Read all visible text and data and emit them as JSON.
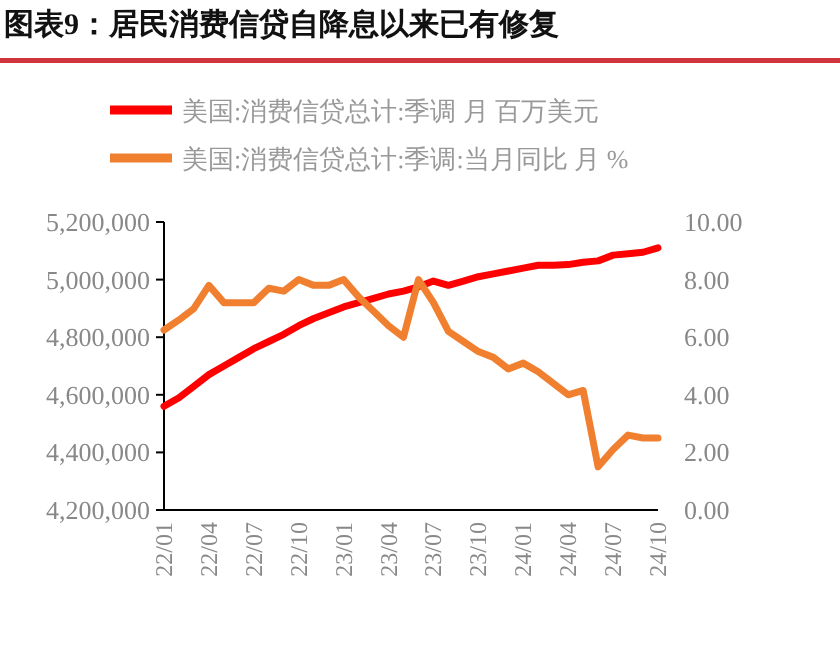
{
  "chart_data": {
    "type": "line",
    "title": "图表9：居民消费信贷自降息以来已有修复",
    "categories": [
      "22/01",
      null,
      null,
      "22/04",
      null,
      null,
      "22/07",
      null,
      null,
      "22/10",
      null,
      null,
      "23/01",
      null,
      null,
      "23/04",
      null,
      null,
      "23/07",
      null,
      null,
      "23/10",
      null,
      null,
      "24/01",
      null,
      null,
      "24/04",
      null,
      null,
      "24/07",
      null,
      null,
      "24/10"
    ],
    "series": [
      {
        "name": "美国:消费信贷总计:季调 月 百万美元",
        "color": "#ff0000",
        "values": [
          4560000,
          4590000,
          4630000,
          4670000,
          4700000,
          4730000,
          4760000,
          4785000,
          4810000,
          4840000,
          4865000,
          4885000,
          4905000,
          4920000,
          4935000,
          4950000,
          4960000,
          4975000,
          4995000,
          4980000,
          4995000,
          5010000,
          5020000,
          5030000,
          5040000,
          5050000,
          5050000,
          5052000,
          5060000,
          5065000,
          5085000,
          5090000,
          5095000,
          5110000
        ]
      },
      {
        "name": "美国:消费信贷总计:季调:当月同比 月 %",
        "color": "#f08030",
        "axis": "y2",
        "values": [
          6.25,
          6.6,
          7.0,
          7.8,
          7.2,
          7.2,
          7.2,
          7.7,
          7.6,
          8.0,
          7.8,
          7.8,
          8.0,
          7.4,
          6.9,
          6.4,
          6.0,
          8.0,
          7.2,
          6.2,
          5.85,
          5.5,
          5.3,
          4.9,
          5.1,
          4.8,
          4.4,
          4.0,
          4.15,
          1.5,
          2.1,
          2.6,
          2.5,
          2.5
        ]
      }
    ],
    "ylim": [
      4200000,
      5200000
    ],
    "yticks": [
      {
        "value": 4200000,
        "label": "4,200,000"
      },
      {
        "value": 4400000,
        "label": "4,400,000"
      },
      {
        "value": 4600000,
        "label": "4,600,000"
      },
      {
        "value": 4800000,
        "label": "4,800,000"
      },
      {
        "value": 5000000,
        "label": "5,000,000"
      },
      {
        "value": 5200000,
        "label": "5,200,000"
      }
    ],
    "y2lim": [
      0,
      10
    ],
    "y2ticks": [
      {
        "value": 0,
        "label": "0.00"
      },
      {
        "value": 2,
        "label": "2.00"
      },
      {
        "value": 4,
        "label": "4.00"
      },
      {
        "value": 6,
        "label": "6.00"
      },
      {
        "value": 8,
        "label": "8.00"
      },
      {
        "value": 10,
        "label": "10.00"
      }
    ],
    "legend": "top",
    "grid": false
  }
}
